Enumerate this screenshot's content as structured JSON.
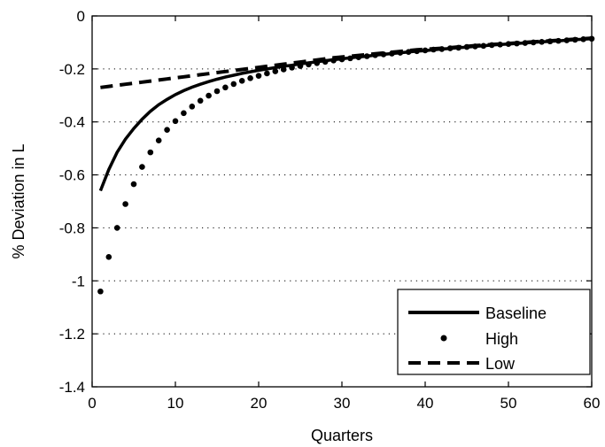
{
  "chart_data": {
    "type": "line",
    "title": "",
    "xlabel": "Quarters",
    "ylabel": "% Deviation in L",
    "xlim": [
      0,
      60
    ],
    "ylim": [
      -1.4,
      0
    ],
    "xticks": [
      0,
      10,
      20,
      30,
      40,
      50,
      60
    ],
    "yticks": [
      0,
      -0.2,
      -0.4,
      -0.6,
      -0.8,
      -1,
      -1.2,
      -1.4
    ],
    "xtick_labels": [
      "0",
      "10",
      "20",
      "30",
      "40",
      "50",
      "60"
    ],
    "ytick_labels": [
      "0",
      "-0.2",
      "-0.4",
      "-0.6",
      "-0.8",
      "-1",
      "-1.2",
      "-1.4"
    ],
    "grid": "dotted horizontal",
    "legend_position": "bottom-right",
    "x": [
      1,
      2,
      3,
      4,
      5,
      6,
      7,
      8,
      9,
      10,
      11,
      12,
      13,
      14,
      15,
      16,
      17,
      18,
      19,
      20,
      21,
      22,
      23,
      24,
      25,
      26,
      27,
      28,
      29,
      30,
      31,
      32,
      33,
      34,
      35,
      36,
      37,
      38,
      39,
      40,
      41,
      42,
      43,
      44,
      45,
      46,
      47,
      48,
      49,
      50,
      51,
      52,
      53,
      54,
      55,
      56,
      57,
      58,
      59,
      60
    ],
    "series": [
      {
        "name": "Baseline",
        "style": "solid",
        "values": [
          -0.66,
          -0.58,
          -0.515,
          -0.465,
          -0.425,
          -0.39,
          -0.36,
          -0.335,
          -0.315,
          -0.297,
          -0.282,
          -0.269,
          -0.258,
          -0.248,
          -0.239,
          -0.231,
          -0.224,
          -0.217,
          -0.211,
          -0.205,
          -0.2,
          -0.195,
          -0.19,
          -0.186,
          -0.181,
          -0.177,
          -0.173,
          -0.169,
          -0.165,
          -0.162,
          -0.158,
          -0.155,
          -0.152,
          -0.148,
          -0.145,
          -0.142,
          -0.139,
          -0.136,
          -0.133,
          -0.131,
          -0.128,
          -0.125,
          -0.123,
          -0.12,
          -0.118,
          -0.115,
          -0.113,
          -0.11,
          -0.108,
          -0.106,
          -0.104,
          -0.102,
          -0.1,
          -0.098,
          -0.096,
          -0.094,
          -0.092,
          -0.09,
          -0.088,
          -0.086
        ]
      },
      {
        "name": "High",
        "style": "dots",
        "values": [
          -1.04,
          -0.91,
          -0.8,
          -0.71,
          -0.635,
          -0.57,
          -0.515,
          -0.47,
          -0.43,
          -0.397,
          -0.367,
          -0.342,
          -0.32,
          -0.301,
          -0.284,
          -0.27,
          -0.257,
          -0.245,
          -0.235,
          -0.226,
          -0.217,
          -0.209,
          -0.202,
          -0.195,
          -0.189,
          -0.183,
          -0.178,
          -0.173,
          -0.168,
          -0.164,
          -0.16,
          -0.156,
          -0.152,
          -0.148,
          -0.145,
          -0.142,
          -0.139,
          -0.136,
          -0.133,
          -0.13,
          -0.127,
          -0.125,
          -0.122,
          -0.12,
          -0.117,
          -0.115,
          -0.113,
          -0.11,
          -0.108,
          -0.106,
          -0.104,
          -0.102,
          -0.1,
          -0.098,
          -0.096,
          -0.094,
          -0.092,
          -0.09,
          -0.088,
          -0.086
        ]
      },
      {
        "name": "Low",
        "style": "dashed",
        "values": [
          -0.27,
          -0.266,
          -0.262,
          -0.258,
          -0.254,
          -0.25,
          -0.246,
          -0.242,
          -0.238,
          -0.234,
          -0.23,
          -0.226,
          -0.222,
          -0.218,
          -0.214,
          -0.21,
          -0.206,
          -0.202,
          -0.198,
          -0.194,
          -0.19,
          -0.186,
          -0.182,
          -0.178,
          -0.174,
          -0.17,
          -0.166,
          -0.162,
          -0.158,
          -0.155,
          -0.152,
          -0.149,
          -0.146,
          -0.143,
          -0.14,
          -0.137,
          -0.134,
          -0.131,
          -0.128,
          -0.126,
          -0.124,
          -0.122,
          -0.12,
          -0.117,
          -0.115,
          -0.112,
          -0.11,
          -0.108,
          -0.106,
          -0.104,
          -0.102,
          -0.1,
          -0.098,
          -0.096,
          -0.094,
          -0.092,
          -0.09,
          -0.088,
          -0.086,
          -0.084
        ]
      }
    ]
  }
}
